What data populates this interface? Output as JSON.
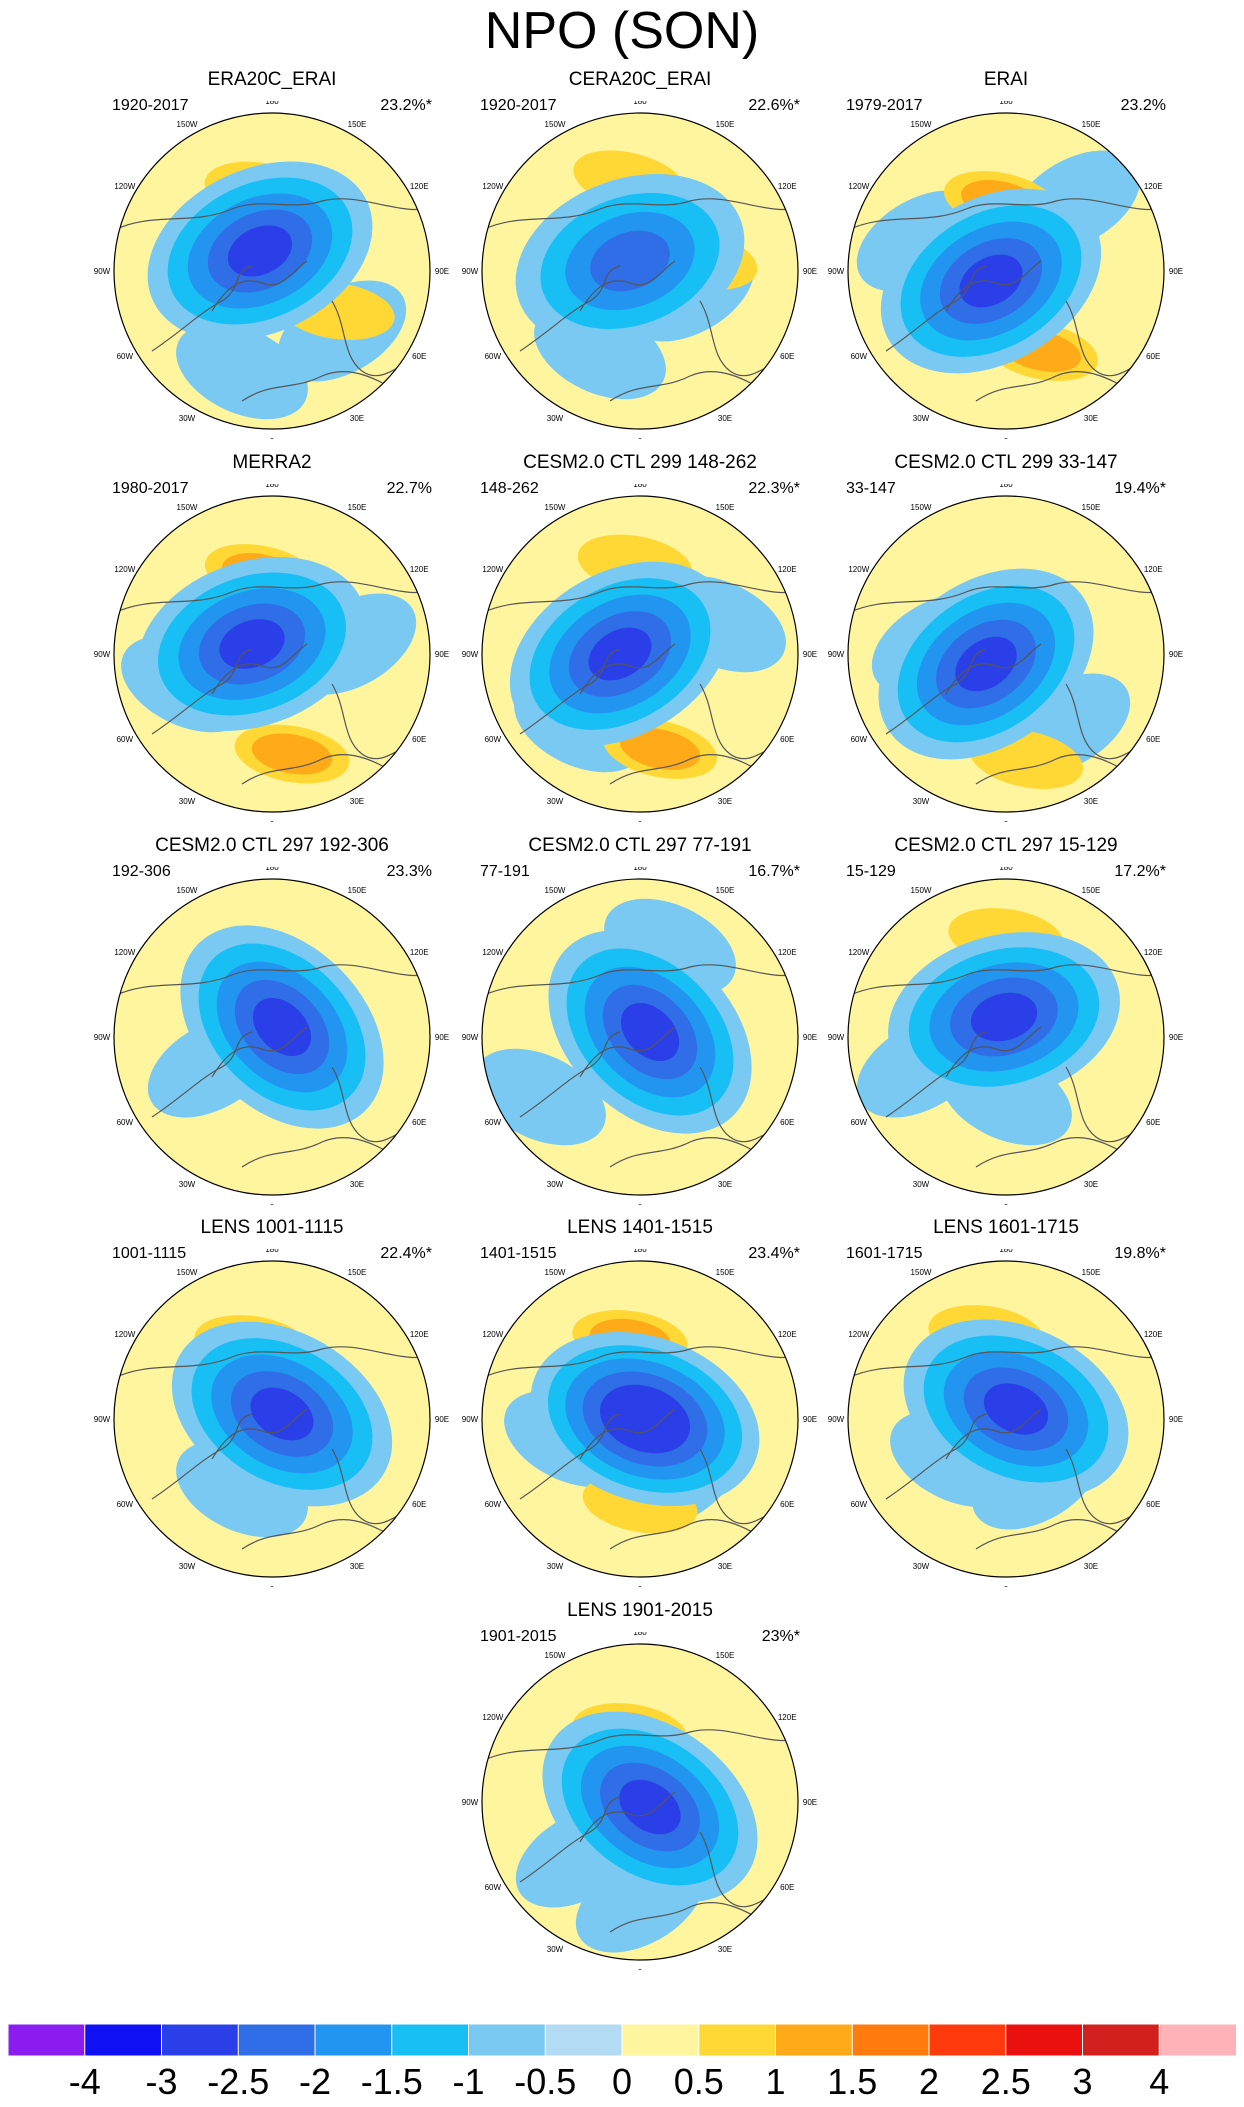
{
  "title": "NPO (SON)",
  "longitude_labels": [
    "180",
    "150E",
    "120E",
    "90E",
    "60E",
    "30E",
    "0",
    "30W",
    "60W",
    "90W",
    "120W",
    "150W"
  ],
  "panels": [
    {
      "title": "ERA20C_ERAI",
      "period": "1920-2017",
      "variance": "23.2%*"
    },
    {
      "title": "CERA20C_ERAI",
      "period": "1920-2017",
      "variance": "22.6%*"
    },
    {
      "title": "ERAI",
      "period": "1979-2017",
      "variance": "23.2%"
    },
    {
      "title": "MERRA2",
      "period": "1980-2017",
      "variance": "22.7%"
    },
    {
      "title": "CESM2.0 CTL 299 148-262",
      "period": "148-262",
      "variance": "22.3%*"
    },
    {
      "title": "CESM2.0 CTL 299 33-147",
      "period": "33-147",
      "variance": "19.4%*"
    },
    {
      "title": "CESM2.0 CTL 297 192-306",
      "period": "192-306",
      "variance": "23.3%"
    },
    {
      "title": "CESM2.0 CTL 297 77-191",
      "period": "77-191",
      "variance": "16.7%*"
    },
    {
      "title": "CESM2.0 CTL 297 15-129",
      "period": "15-129",
      "variance": "17.2%*"
    },
    {
      "title": "LENS 1001-1115",
      "period": "1001-1115",
      "variance": "22.4%*"
    },
    {
      "title": "LENS 1401-1515",
      "period": "1401-1515",
      "variance": "23.4%*"
    },
    {
      "title": "LENS 1601-1715",
      "period": "1601-1715",
      "variance": "19.8%*"
    },
    {
      "title": "LENS 1901-2015",
      "period": "1901-2015",
      "variance": "23%*"
    }
  ],
  "colorbar": {
    "ticks": [
      "-4",
      "-3",
      "-2.5",
      "-2",
      "-1.5",
      "-1",
      "-0.5",
      "0",
      "0.5",
      "1",
      "1.5",
      "2",
      "2.5",
      "3",
      "4"
    ],
    "colors": [
      "#8a1cf0",
      "#1010f5",
      "#2b3fe8",
      "#2f6ee6",
      "#2295f0",
      "#17bff5",
      "#79c9f2",
      "#b3dcf4",
      "#fff59e",
      "#ffd835",
      "#ffaa18",
      "#ff7b0d",
      "#ff3a0c",
      "#ea1010",
      "#d2201e",
      "#ffb3b8"
    ]
  }
}
